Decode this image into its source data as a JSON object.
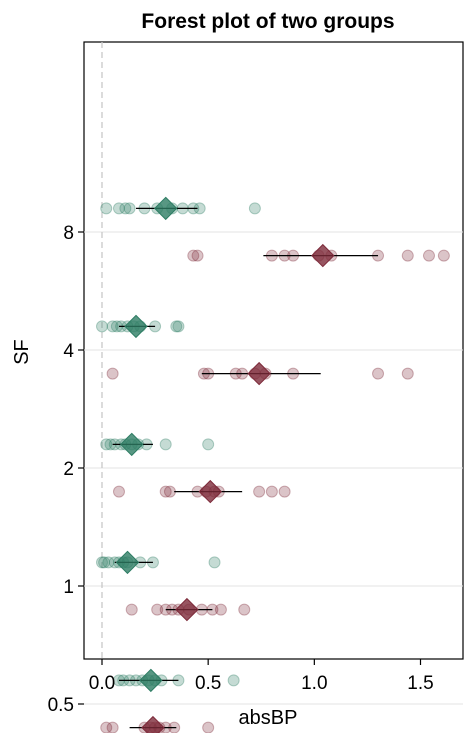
{
  "chart_data": {
    "type": "scatter",
    "title": "Forest plot of two groups",
    "xlabel": "absBP",
    "ylabel": "SF",
    "xlim": [
      -0.05,
      1.7
    ],
    "x_ticks": [
      0.0,
      0.5,
      1.0,
      1.5
    ],
    "x_tick_labels": [
      "0.0",
      "0.5",
      "1.0",
      "1.5"
    ],
    "y_scale": "log2",
    "y_ticks": [
      0.5,
      1,
      2,
      4,
      8
    ],
    "y_tick_labels": [
      "0.5",
      "1",
      "2",
      "4",
      "8"
    ],
    "grid": "horizontal only",
    "reference_line": {
      "x": 0,
      "style": "dashed"
    },
    "colors": {
      "green": "#2e7d64",
      "red": "#7d2a3a"
    },
    "groups": [
      {
        "sf": 0.5,
        "color": "red",
        "points": [
          0.02,
          0.05,
          0.2,
          0.23,
          0.25,
          0.27,
          0.3,
          0.34,
          0.5
        ],
        "estimate": 0.24,
        "ci": [
          0.13,
          0.35
        ]
      },
      {
        "sf": 0.5,
        "color": "green",
        "points": [
          0.08,
          0.1,
          0.13,
          0.16,
          0.19,
          0.22,
          0.25,
          0.28,
          0.36,
          0.62
        ],
        "estimate": 0.23,
        "ci": [
          0.08,
          0.36
        ]
      },
      {
        "sf": 1,
        "color": "red",
        "points": [
          0.14,
          0.26,
          0.3,
          0.33,
          0.36,
          0.41,
          0.47,
          0.52,
          0.56,
          0.67
        ],
        "estimate": 0.4,
        "ci": [
          0.3,
          0.52
        ]
      },
      {
        "sf": 1,
        "color": "green",
        "points": [
          0.0,
          0.01,
          0.03,
          0.06,
          0.08,
          0.1,
          0.12,
          0.18,
          0.24,
          0.53
        ],
        "estimate": 0.12,
        "ci": [
          0.06,
          0.24
        ]
      },
      {
        "sf": 2,
        "color": "red",
        "points": [
          0.08,
          0.3,
          0.32,
          0.45,
          0.49,
          0.53,
          0.55,
          0.74,
          0.8,
          0.86
        ],
        "estimate": 0.51,
        "ci": [
          0.34,
          0.66
        ]
      },
      {
        "sf": 2,
        "color": "green",
        "points": [
          0.02,
          0.04,
          0.06,
          0.09,
          0.11,
          0.14,
          0.17,
          0.21,
          0.3,
          0.5
        ],
        "estimate": 0.14,
        "ci": [
          0.05,
          0.24
        ]
      },
      {
        "sf": 4,
        "color": "red",
        "points": [
          0.05,
          0.48,
          0.5,
          0.63,
          0.66,
          0.72,
          0.77,
          0.9,
          1.3,
          1.44
        ],
        "estimate": 0.74,
        "ci": [
          0.47,
          1.03
        ]
      },
      {
        "sf": 4,
        "color": "green",
        "points": [
          0.0,
          0.05,
          0.07,
          0.09,
          0.12,
          0.15,
          0.18,
          0.25,
          0.35,
          0.36
        ],
        "estimate": 0.16,
        "ci": [
          0.08,
          0.25
        ]
      },
      {
        "sf": 8,
        "color": "red",
        "points": [
          0.43,
          0.45,
          0.8,
          0.86,
          0.9,
          1.02,
          1.08,
          1.3,
          1.44,
          1.54,
          1.61
        ],
        "estimate": 1.04,
        "ci": [
          0.76,
          1.3
        ]
      },
      {
        "sf": 8,
        "color": "green",
        "points": [
          0.02,
          0.08,
          0.11,
          0.13,
          0.2,
          0.26,
          0.33,
          0.38,
          0.43,
          0.46,
          0.72
        ],
        "estimate": 0.3,
        "ci": [
          0.16,
          0.45
        ]
      }
    ]
  }
}
